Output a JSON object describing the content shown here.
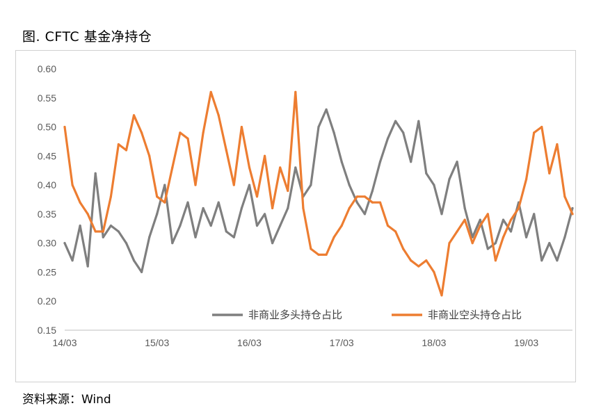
{
  "figure": {
    "title": "图. CFTC 基金净持仓",
    "source": "资料来源：Wind"
  },
  "chart_data": {
    "type": "line",
    "title": "",
    "xlabel": "",
    "ylabel": "",
    "x_tick_labels": [
      "14/03",
      "15/03",
      "16/03",
      "17/03",
      "18/03",
      "19/03"
    ],
    "y_ticks": [
      0.15,
      0.2,
      0.25,
      0.3,
      0.35,
      0.4,
      0.45,
      0.5,
      0.55,
      0.6
    ],
    "y_tick_labels": [
      "0.15",
      "0.20",
      "0.25",
      "0.30",
      "0.35",
      "0.40",
      "0.45",
      "0.50",
      "0.55",
      "0.60"
    ],
    "ylim": [
      0.15,
      0.6
    ],
    "x_range": [
      "2014-03",
      "2019-09"
    ],
    "grid": false,
    "legend_position": "bottom-right",
    "x": [
      "2014-03",
      "2014-04",
      "2014-05",
      "2014-06",
      "2014-07",
      "2014-08",
      "2014-09",
      "2014-10",
      "2014-11",
      "2014-12",
      "2015-01",
      "2015-02",
      "2015-03",
      "2015-04",
      "2015-05",
      "2015-06",
      "2015-07",
      "2015-08",
      "2015-09",
      "2015-10",
      "2015-11",
      "2015-12",
      "2016-01",
      "2016-02",
      "2016-03",
      "2016-04",
      "2016-05",
      "2016-06",
      "2016-07",
      "2016-08",
      "2016-09",
      "2016-10",
      "2016-11",
      "2016-12",
      "2017-01",
      "2017-02",
      "2017-03",
      "2017-04",
      "2017-05",
      "2017-06",
      "2017-07",
      "2017-08",
      "2017-09",
      "2017-10",
      "2017-11",
      "2017-12",
      "2018-01",
      "2018-02",
      "2018-03",
      "2018-04",
      "2018-05",
      "2018-06",
      "2018-07",
      "2018-08",
      "2018-09",
      "2018-10",
      "2018-11",
      "2018-12",
      "2019-01",
      "2019-02",
      "2019-03",
      "2019-04",
      "2019-05",
      "2019-06",
      "2019-07",
      "2019-08",
      "2019-09"
    ],
    "series": [
      {
        "name": "非商业多头持仓占比",
        "color": "#7f7f7f",
        "values": [
          0.3,
          0.27,
          0.33,
          0.26,
          0.42,
          0.31,
          0.33,
          0.32,
          0.3,
          0.27,
          0.25,
          0.31,
          0.35,
          0.4,
          0.3,
          0.33,
          0.37,
          0.31,
          0.36,
          0.33,
          0.37,
          0.32,
          0.31,
          0.36,
          0.4,
          0.33,
          0.35,
          0.3,
          0.33,
          0.36,
          0.43,
          0.38,
          0.4,
          0.5,
          0.53,
          0.49,
          0.44,
          0.4,
          0.37,
          0.35,
          0.39,
          0.44,
          0.48,
          0.51,
          0.49,
          0.44,
          0.51,
          0.42,
          0.4,
          0.35,
          0.41,
          0.44,
          0.36,
          0.31,
          0.34,
          0.29,
          0.3,
          0.34,
          0.32,
          0.37,
          0.31,
          0.35,
          0.27,
          0.3,
          0.27,
          0.31,
          0.36
        ]
      },
      {
        "name": "非商业空头持仓占比",
        "color": "#ed7d31",
        "values": [
          0.5,
          0.4,
          0.37,
          0.35,
          0.32,
          0.32,
          0.38,
          0.47,
          0.46,
          0.52,
          0.49,
          0.45,
          0.38,
          0.37,
          0.43,
          0.49,
          0.48,
          0.4,
          0.49,
          0.56,
          0.52,
          0.46,
          0.4,
          0.5,
          0.43,
          0.38,
          0.45,
          0.36,
          0.43,
          0.39,
          0.56,
          0.36,
          0.29,
          0.28,
          0.28,
          0.31,
          0.33,
          0.36,
          0.38,
          0.38,
          0.37,
          0.37,
          0.33,
          0.32,
          0.29,
          0.27,
          0.26,
          0.27,
          0.25,
          0.21,
          0.3,
          0.32,
          0.34,
          0.3,
          0.33,
          0.35,
          0.27,
          0.31,
          0.34,
          0.36,
          0.41,
          0.49,
          0.5,
          0.42,
          0.47,
          0.38,
          0.35
        ]
      }
    ]
  }
}
